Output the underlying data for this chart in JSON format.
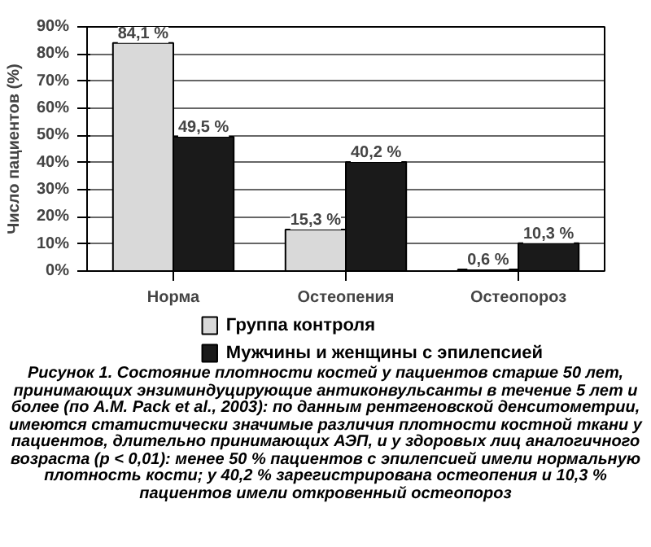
{
  "chart_data": {
    "type": "bar",
    "ylabel": "Число пациентов (%)",
    "categories": [
      "Норма",
      "Остеопения",
      "Остеопороз"
    ],
    "series": [
      {
        "name": "Группа контроля",
        "color": "#d9d9d9",
        "values": [
          84.1,
          15.3,
          0.6
        ],
        "value_labels": [
          "84,1 %",
          "15,3 %",
          "0,6 %"
        ]
      },
      {
        "name": "Мужчины и женщины с эпилепсией",
        "color": "#1a1a1a",
        "values": [
          49.5,
          40.2,
          10.3
        ],
        "value_labels": [
          "49,5 %",
          "40,2 %",
          "10,3 %"
        ]
      }
    ],
    "ylim": [
      0,
      90
    ],
    "yticks": [
      {
        "value": 0,
        "label": "0%"
      },
      {
        "value": 10,
        "label": "10%"
      },
      {
        "value": 20,
        "label": "20%"
      },
      {
        "value": 30,
        "label": "30%"
      },
      {
        "value": 40,
        "label": "40%"
      },
      {
        "value": 50,
        "label": "50%"
      },
      {
        "value": 60,
        "label": "60%"
      },
      {
        "value": 70,
        "label": "70%"
      },
      {
        "value": 80,
        "label": "80%"
      },
      {
        "value": 90,
        "label": "90%"
      }
    ],
    "grid": "y",
    "legend": "bottom",
    "annotations": [
      "Рисунок 1. Состояние плотности костей у пациентов старше 50 лет, принимающих энзиминдуцирующие антиконвульсанты в течение 5 лет и более (по A.M. Pack et al., 2003): по данным рентгеновской денситометрии, имеются статистически значимые различия плотности костной ткани у пациентов, длительно принимающих АЭП, и у здоровых лиц аналогичного возраста (p < 0,01): менее 50 % пациентов с эпилепсией имели нормальную плотность кости; у 40,2 % зарегистрирована остеопения и 10,3 % пациентов имели откровенный остеопороз"
    ]
  }
}
